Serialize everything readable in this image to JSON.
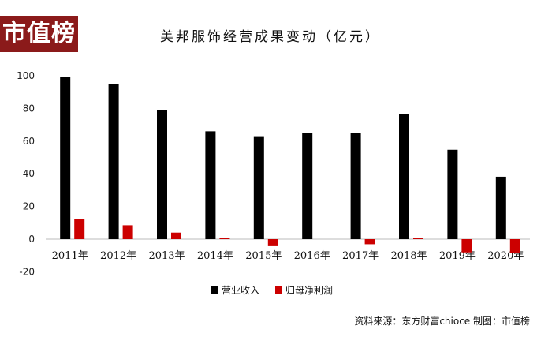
{
  "logo": {
    "text": "市值榜"
  },
  "chart_data": {
    "type": "bar",
    "title": "美邦服饰经营成果变动（亿元）",
    "categories": [
      "2011年",
      "2012年",
      "2013年",
      "2014年",
      "2015年",
      "2016年",
      "2017年",
      "2018年",
      "2019年",
      "2020年"
    ],
    "series": [
      {
        "name": "营业收入",
        "color": "#000000",
        "values": [
          99.4,
          95.0,
          79.0,
          66.0,
          63.0,
          65.2,
          64.9,
          76.8,
          54.7,
          38.2
        ]
      },
      {
        "name": "归母净利润",
        "color": "#cc0000",
        "values": [
          12.1,
          8.5,
          4.0,
          0.9,
          -4.3,
          0.0,
          -3.1,
          0.6,
          -8.1,
          -8.7
        ]
      }
    ],
    "ylim": [
      -20,
      100
    ],
    "yticks": [
      -20,
      0,
      20,
      40,
      60,
      80,
      100
    ],
    "legend_position": "bottom",
    "grid": false,
    "source": "资料来源：东方财富chioce   制图：市值榜"
  }
}
